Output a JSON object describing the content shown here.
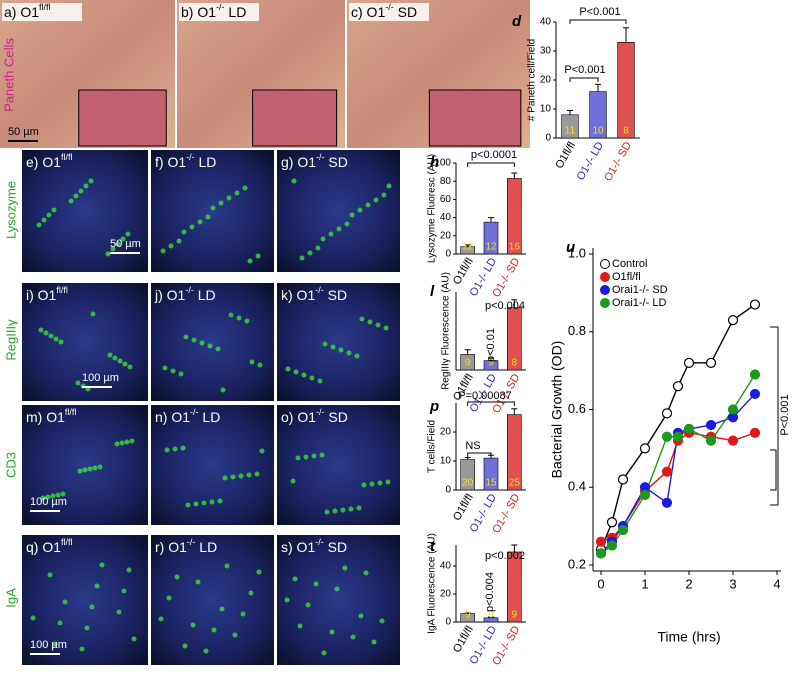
{
  "figure": {
    "row_labels": [
      "Paneth Cells",
      "Lysozyme",
      "RegIIIγ",
      "CD3",
      "IgA"
    ],
    "panels": [
      {
        "text": "a) O1",
        "sup": "fl/fl"
      },
      {
        "text": "b) O1",
        "sup": "-/-",
        "after": " LD"
      },
      {
        "text": "c) O1",
        "sup": "-/-",
        "after": " SD"
      },
      {
        "text": "e) O1",
        "sup": "fl/fl"
      },
      {
        "text": "f) O1",
        "sup": "-/-",
        "after": " LD"
      },
      {
        "text": "g) O1",
        "sup": "-/-",
        "after": " SD"
      },
      {
        "text": "i) O1",
        "sup": "fl/fl"
      },
      {
        "text": "j) O1",
        "sup": "-/-",
        "after": " LD"
      },
      {
        "text": "k) O1",
        "sup": "-/-",
        "after": " SD"
      },
      {
        "text": "m) O1",
        "sup": "fl/fl"
      },
      {
        "text": "n) O1",
        "sup": "-/-",
        "after": " LD"
      },
      {
        "text": "o) O1",
        "sup": "-/-",
        "after": " SD"
      },
      {
        "text": "q) O1",
        "sup": "fl/fl"
      },
      {
        "text": "r) O1",
        "sup": "-/-",
        "after": " LD"
      },
      {
        "text": "s) O1",
        "sup": "-/-",
        "after": " SD"
      }
    ],
    "scale_bars": [
      "50 µm",
      "50 µm",
      "100 µm",
      "100 µm",
      "100 µm"
    ]
  },
  "chart_data": [
    {
      "type": "bar",
      "title": "d",
      "y_label": "# Paneth cell/Field",
      "categories": [
        "O1fl/fl",
        "O1-/- LD",
        "O1-/- SD"
      ],
      "label_colors": [
        "#000000",
        "#2a2ab8",
        "#d42020"
      ],
      "colors": [
        "#9a9a9a",
        "#7070d8",
        "#e05050"
      ],
      "values": [
        8,
        16,
        33
      ],
      "errors": [
        1.5,
        2.5,
        5
      ],
      "n_labels": [
        "11",
        "10",
        "8"
      ],
      "annotations": [
        "P<0.001",
        "P<0.001"
      ],
      "ylim": [
        0,
        40
      ],
      "yticks": [
        0,
        10,
        20,
        30,
        40
      ]
    },
    {
      "type": "bar",
      "title": "h",
      "y_label": "Lysozyme Fluoresc (AU)",
      "categories": [
        "O1fl/fl",
        "O1-/- LD",
        "O1-/- SD"
      ],
      "label_colors": [
        "#000000",
        "#2a2ab8",
        "#d42020"
      ],
      "colors": [
        "#9a9a9a",
        "#7070d8",
        "#e05050"
      ],
      "values": [
        8,
        35,
        83
      ],
      "errors": [
        2,
        5,
        6
      ],
      "n_labels": [
        "12",
        "12",
        "16"
      ],
      "annotations": [
        "p<0.0001"
      ],
      "ylim": [
        0,
        100
      ],
      "yticks": [
        0,
        20,
        40,
        60,
        80,
        100
      ]
    },
    {
      "type": "bar",
      "title": "l",
      "y_label": "RegIIIγ Fluorescence (AU)",
      "categories": [
        "O1fl/fl",
        "O1-/- LD",
        "O1-/- SD"
      ],
      "label_colors": [
        "#000000",
        "#2a2ab8",
        "#d42020"
      ],
      "colors": [
        "#9a9a9a",
        "#7070d8",
        "#e05050"
      ],
      "values": [
        10,
        6,
        40
      ],
      "errors": [
        3,
        1.5,
        5
      ],
      "n_labels": [
        "9",
        "9",
        "8"
      ],
      "annotations": [
        "p<0.004",
        "p<0.01"
      ],
      "ylim": [
        0,
        50
      ]
    },
    {
      "type": "bar",
      "title": "p",
      "y_label": "T cells/Field",
      "categories": [
        "O1fl/fl",
        "O1-/- LD",
        "O1-/- SD"
      ],
      "label_colors": [
        "#000000",
        "#2a2ab8",
        "#d42020"
      ],
      "colors": [
        "#9a9a9a",
        "#7070d8",
        "#e05050"
      ],
      "values": [
        10.5,
        11,
        26
      ],
      "errors": [
        0.7,
        1,
        2
      ],
      "n_labels": [
        "20",
        "15",
        "25"
      ],
      "annotations": [
        "P=0.00087",
        "NS"
      ],
      "ylim": [
        0,
        30
      ],
      "yticks": [
        0,
        10,
        20
      ]
    },
    {
      "type": "bar",
      "title": "t",
      "y_label": "IgA Fluorescence (AU)",
      "categories": [
        "O1fl/fl",
        "O1-/- LD",
        "O1-/- SD"
      ],
      "label_colors": [
        "#000000",
        "#2a2ab8",
        "#d42020"
      ],
      "colors": [
        "#9a9a9a",
        "#7070d8",
        "#e05050"
      ],
      "values": [
        6,
        3,
        50
      ],
      "errors": [
        0.5,
        0.5,
        5
      ],
      "n_labels": [
        "9",
        "9",
        "9"
      ],
      "annotations": [
        "p<0.002",
        "p<0.004"
      ],
      "ylim": [
        0,
        55
      ],
      "yticks": [
        0,
        20,
        40
      ]
    },
    {
      "type": "line",
      "title": "u",
      "x_label": "Time (hrs)",
      "y_label": "Bacterial Growth (OD)",
      "x": [
        0,
        0.25,
        0.5,
        1,
        1.5,
        1.75,
        2,
        2.5,
        3,
        3.5
      ],
      "series": [
        {
          "name": "Control",
          "color": "#ffffff",
          "values": [
            0.24,
            0.31,
            0.42,
            0.5,
            0.59,
            0.66,
            0.72,
            0.72,
            0.83,
            0.87
          ]
        },
        {
          "name": "O1fl/fl",
          "color": "#e01818",
          "values": [
            0.26,
            0.27,
            0.3,
            0.39,
            0.44,
            0.52,
            0.54,
            0.53,
            0.52,
            0.54
          ]
        },
        {
          "name": "Orai1-/- SD",
          "color": "#1a1ae0",
          "values": [
            0.23,
            0.26,
            0.3,
            0.4,
            0.36,
            0.54,
            0.55,
            0.56,
            0.58,
            0.64
          ]
        },
        {
          "name": "Orai1-/- LD",
          "color": "#1a9a1a",
          "values": [
            0.23,
            0.25,
            0.29,
            0.38,
            0.53,
            0.53,
            0.55,
            0.52,
            0.6,
            0.69
          ]
        }
      ],
      "annotations": [
        "P<0.001"
      ],
      "legend": "upper left",
      "xlim": [
        0,
        4
      ],
      "xticks": [
        0,
        1,
        2,
        3,
        4
      ],
      "ylim": [
        0.2,
        1.0
      ],
      "yticks": [
        0.2,
        0.4,
        0.6,
        0.8,
        {
          "value": 1,
          "label": "1.0"
        }
      ]
    }
  ]
}
